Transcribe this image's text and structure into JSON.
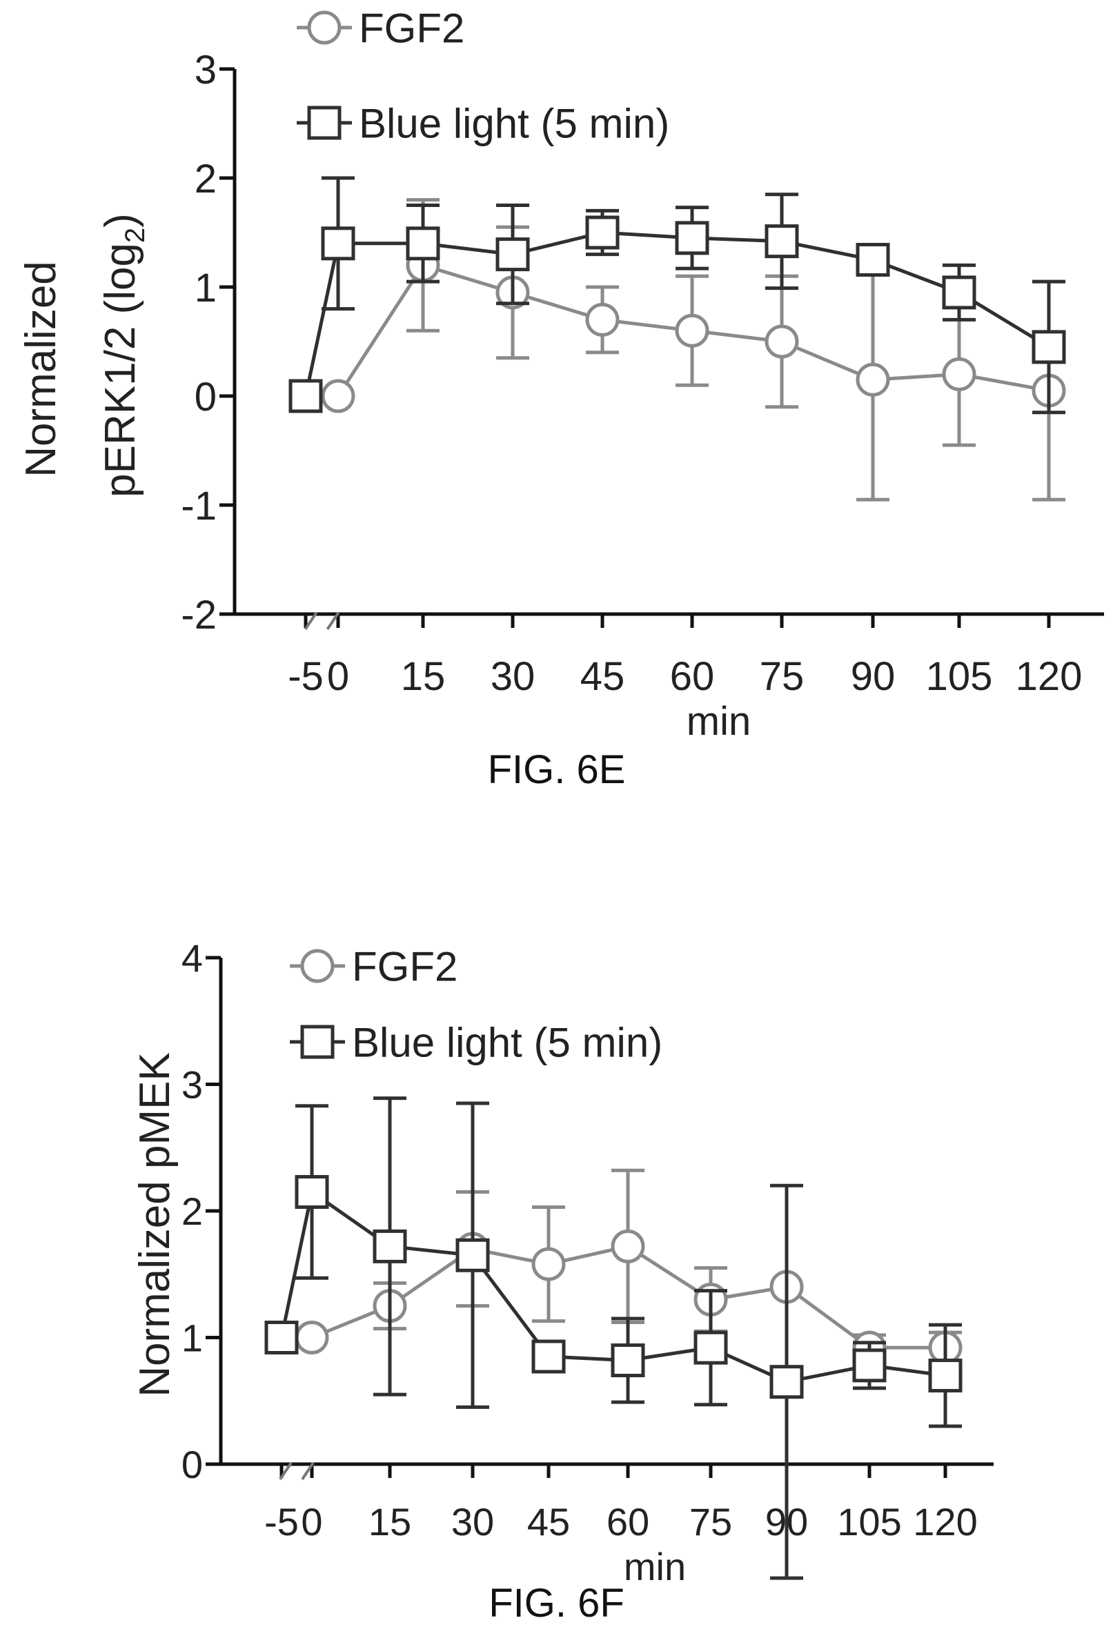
{
  "chart_data": [
    {
      "type": "line",
      "caption": "FIG. 6E",
      "xlabel": "min",
      "ylabel": [
        "Normalized",
        "pERK1/2 (log",
        "2",
        ")"
      ],
      "categories": [
        "-5",
        "0",
        "15",
        "30",
        "45",
        "60",
        "75",
        "90",
        "105",
        "120"
      ],
      "ylim": [
        -2,
        3
      ],
      "yticks": [
        "-2",
        "-1",
        "0",
        "1",
        "2",
        "3"
      ],
      "grid": false,
      "legend_position": "top-left",
      "series": [
        {
          "name": "FGF2",
          "marker": "circle",
          "color": "#8a8a8a",
          "points": [
            {
              "x": "0",
              "y": 0.0,
              "err": null
            },
            {
              "x": "15",
              "y": 1.2,
              "err": 0.6
            },
            {
              "x": "30",
              "y": 0.95,
              "err": 0.6
            },
            {
              "x": "45",
              "y": 0.7,
              "err": 0.3
            },
            {
              "x": "60",
              "y": 0.6,
              "err": 0.5
            },
            {
              "x": "75",
              "y": 0.5,
              "err": 0.6
            },
            {
              "x": "90",
              "y": 0.15,
              "err": 1.1
            },
            {
              "x": "105",
              "y": 0.2,
              "err": 0.65
            },
            {
              "x": "120",
              "y": 0.05,
              "err": 1.0
            }
          ]
        },
        {
          "name": "Blue light (5 min)",
          "marker": "square",
          "color": "#303030",
          "points": [
            {
              "x": "-5",
              "y": 0.0,
              "err": null
            },
            {
              "x": "0",
              "y": 1.4,
              "err": 0.6
            },
            {
              "x": "15",
              "y": 1.4,
              "err": 0.35
            },
            {
              "x": "30",
              "y": 1.3,
              "err": 0.45
            },
            {
              "x": "45",
              "y": 1.5,
              "err": 0.2
            },
            {
              "x": "60",
              "y": 1.45,
              "err": 0.28
            },
            {
              "x": "75",
              "y": 1.42,
              "err": 0.43
            },
            {
              "x": "90",
              "y": 1.25,
              "err": null
            },
            {
              "x": "105",
              "y": 0.95,
              "err": 0.25
            },
            {
              "x": "120",
              "y": 0.45,
              "err": 0.6
            }
          ]
        }
      ]
    },
    {
      "type": "line",
      "caption": "FIG. 6F",
      "xlabel": "min",
      "ylabel": [
        "Normalized pMEK"
      ],
      "categories": [
        "-5",
        "0",
        "15",
        "30",
        "45",
        "60",
        "75",
        "90",
        "105",
        "120"
      ],
      "ylim": [
        0,
        4
      ],
      "yticks": [
        "0",
        "1",
        "2",
        "3",
        "4"
      ],
      "grid": false,
      "legend_position": "top-left",
      "series": [
        {
          "name": "FGF2",
          "marker": "circle",
          "color": "#8a8a8a",
          "points": [
            {
              "x": "0",
              "y": 1.0,
              "err": null
            },
            {
              "x": "15",
              "y": 1.25,
              "err": 0.18
            },
            {
              "x": "30",
              "y": 1.7,
              "err": 0.45
            },
            {
              "x": "45",
              "y": 1.58,
              "err": 0.45
            },
            {
              "x": "60",
              "y": 1.72,
              "err": 0.6
            },
            {
              "x": "75",
              "y": 1.3,
              "err": 0.25
            },
            {
              "x": "90",
              "y": 1.4,
              "err": null
            },
            {
              "x": "105",
              "y": 0.92,
              "err": 0.1
            },
            {
              "x": "120",
              "y": 0.92,
              "err": 0.12
            }
          ]
        },
        {
          "name": "Blue light (5 min)",
          "marker": "square",
          "color": "#303030",
          "points": [
            {
              "x": "-5",
              "y": 1.0,
              "err": null
            },
            {
              "x": "0",
              "y": 2.15,
              "err": 0.68
            },
            {
              "x": "15",
              "y": 1.72,
              "err": 1.17
            },
            {
              "x": "30",
              "y": 1.65,
              "err": 1.2
            },
            {
              "x": "45",
              "y": 0.85,
              "err": null
            },
            {
              "x": "60",
              "y": 0.82,
              "err": 0.33
            },
            {
              "x": "75",
              "y": 0.92,
              "err": 0.45
            },
            {
              "x": "90",
              "y": 0.65,
              "err": 1.55
            },
            {
              "x": "105",
              "y": 0.78,
              "err": 0.18
            },
            {
              "x": "120",
              "y": 0.7,
              "err": 0.4
            }
          ]
        }
      ]
    }
  ]
}
